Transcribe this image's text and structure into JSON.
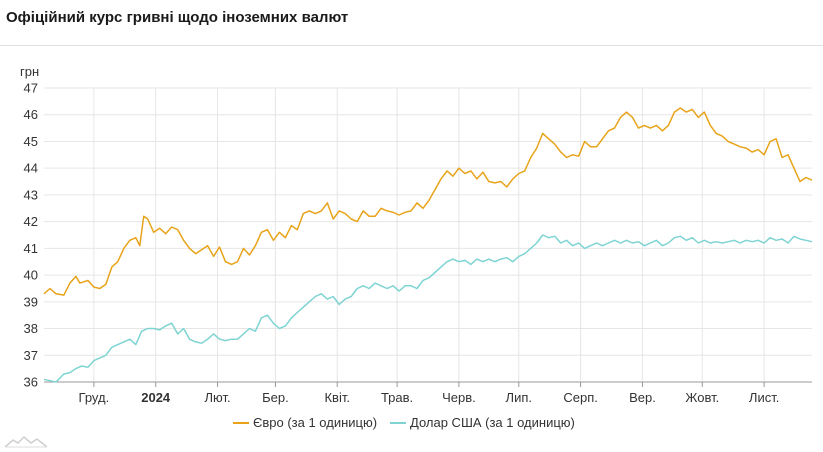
{
  "title": "Офіційний курс гривні щодо іноземних валют",
  "chart_data": {
    "type": "line",
    "ylabel": "грн",
    "ylim": [
      36,
      47
    ],
    "yticks": [
      36,
      37,
      38,
      39,
      40,
      41,
      42,
      43,
      44,
      45,
      46,
      47
    ],
    "xlim": [
      "2023-11-06",
      "2024-11-25"
    ],
    "xticks": [
      {
        "date": "2023-12-01",
        "label": "Груд.",
        "bold": false
      },
      {
        "date": "2024-01-01",
        "label": "2024",
        "bold": true
      },
      {
        "date": "2024-02-01",
        "label": "Лют.",
        "bold": false
      },
      {
        "date": "2024-03-01",
        "label": "Бер.",
        "bold": false
      },
      {
        "date": "2024-04-01",
        "label": "Квіт.",
        "bold": false
      },
      {
        "date": "2024-05-01",
        "label": "Трав.",
        "bold": false
      },
      {
        "date": "2024-06-01",
        "label": "Черв.",
        "bold": false
      },
      {
        "date": "2024-07-01",
        "label": "Лип.",
        "bold": false
      },
      {
        "date": "2024-08-01",
        "label": "Серп.",
        "bold": false
      },
      {
        "date": "2024-09-01",
        "label": "Вер.",
        "bold": false
      },
      {
        "date": "2024-10-01",
        "label": "Жовт.",
        "bold": false
      },
      {
        "date": "2024-11-01",
        "label": "Лист.",
        "bold": false
      }
    ],
    "grid": true,
    "legend_position": "bottom",
    "series": [
      {
        "name": "Євро (за 1 одиницю)",
        "color": "#e8a319",
        "points": [
          [
            "2023-11-06",
            39.3
          ],
          [
            "2023-11-09",
            39.5
          ],
          [
            "2023-11-12",
            39.3
          ],
          [
            "2023-11-16",
            39.25
          ],
          [
            "2023-11-19",
            39.7
          ],
          [
            "2023-11-22",
            39.95
          ],
          [
            "2023-11-24",
            39.7
          ],
          [
            "2023-11-28",
            39.8
          ],
          [
            "2023-12-01",
            39.55
          ],
          [
            "2023-12-04",
            39.5
          ],
          [
            "2023-12-07",
            39.65
          ],
          [
            "2023-12-10",
            40.3
          ],
          [
            "2023-12-13",
            40.5
          ],
          [
            "2023-12-16",
            41.0
          ],
          [
            "2023-12-19",
            41.3
          ],
          [
            "2023-12-22",
            41.4
          ],
          [
            "2023-12-24",
            41.1
          ],
          [
            "2023-12-26",
            42.2
          ],
          [
            "2023-12-28",
            42.1
          ],
          [
            "2023-12-31",
            41.6
          ],
          [
            "2024-01-03",
            41.75
          ],
          [
            "2024-01-06",
            41.55
          ],
          [
            "2024-01-09",
            41.8
          ],
          [
            "2024-01-12",
            41.7
          ],
          [
            "2024-01-15",
            41.3
          ],
          [
            "2024-01-18",
            41.0
          ],
          [
            "2024-01-21",
            40.8
          ],
          [
            "2024-01-24",
            40.95
          ],
          [
            "2024-01-27",
            41.1
          ],
          [
            "2024-01-30",
            40.7
          ],
          [
            "2024-02-02",
            41.05
          ],
          [
            "2024-02-05",
            40.5
          ],
          [
            "2024-02-08",
            40.4
          ],
          [
            "2024-02-11",
            40.5
          ],
          [
            "2024-02-14",
            41.0
          ],
          [
            "2024-02-17",
            40.75
          ],
          [
            "2024-02-20",
            41.1
          ],
          [
            "2024-02-23",
            41.6
          ],
          [
            "2024-02-26",
            41.7
          ],
          [
            "2024-02-29",
            41.3
          ],
          [
            "2024-03-03",
            41.6
          ],
          [
            "2024-03-06",
            41.4
          ],
          [
            "2024-03-09",
            41.85
          ],
          [
            "2024-03-12",
            41.7
          ],
          [
            "2024-03-15",
            42.3
          ],
          [
            "2024-03-18",
            42.4
          ],
          [
            "2024-03-21",
            42.3
          ],
          [
            "2024-03-24",
            42.4
          ],
          [
            "2024-03-27",
            42.7
          ],
          [
            "2024-03-30",
            42.1
          ],
          [
            "2024-04-02",
            42.4
          ],
          [
            "2024-04-05",
            42.3
          ],
          [
            "2024-04-08",
            42.1
          ],
          [
            "2024-04-11",
            42.0
          ],
          [
            "2024-04-14",
            42.4
          ],
          [
            "2024-04-17",
            42.2
          ],
          [
            "2024-04-20",
            42.2
          ],
          [
            "2024-04-23",
            42.5
          ],
          [
            "2024-04-26",
            42.4
          ],
          [
            "2024-04-29",
            42.35
          ],
          [
            "2024-05-02",
            42.25
          ],
          [
            "2024-05-05",
            42.35
          ],
          [
            "2024-05-08",
            42.4
          ],
          [
            "2024-05-11",
            42.7
          ],
          [
            "2024-05-14",
            42.5
          ],
          [
            "2024-05-17",
            42.8
          ],
          [
            "2024-05-20",
            43.2
          ],
          [
            "2024-05-23",
            43.6
          ],
          [
            "2024-05-26",
            43.9
          ],
          [
            "2024-05-29",
            43.7
          ],
          [
            "2024-06-01",
            44.0
          ],
          [
            "2024-06-04",
            43.8
          ],
          [
            "2024-06-07",
            43.9
          ],
          [
            "2024-06-10",
            43.6
          ],
          [
            "2024-06-13",
            43.85
          ],
          [
            "2024-06-16",
            43.5
          ],
          [
            "2024-06-19",
            43.45
          ],
          [
            "2024-06-22",
            43.5
          ],
          [
            "2024-06-25",
            43.3
          ],
          [
            "2024-06-28",
            43.6
          ],
          [
            "2024-07-01",
            43.8
          ],
          [
            "2024-07-04",
            43.9
          ],
          [
            "2024-07-07",
            44.4
          ],
          [
            "2024-07-10",
            44.75
          ],
          [
            "2024-07-13",
            45.3
          ],
          [
            "2024-07-16",
            45.1
          ],
          [
            "2024-07-19",
            44.9
          ],
          [
            "2024-07-22",
            44.6
          ],
          [
            "2024-07-25",
            44.4
          ],
          [
            "2024-07-28",
            44.5
          ],
          [
            "2024-07-31",
            44.45
          ],
          [
            "2024-08-03",
            45.0
          ],
          [
            "2024-08-06",
            44.8
          ],
          [
            "2024-08-09",
            44.8
          ],
          [
            "2024-08-12",
            45.1
          ],
          [
            "2024-08-15",
            45.4
          ],
          [
            "2024-08-18",
            45.5
          ],
          [
            "2024-08-21",
            45.9
          ],
          [
            "2024-08-24",
            46.1
          ],
          [
            "2024-08-27",
            45.9
          ],
          [
            "2024-08-30",
            45.5
          ],
          [
            "2024-09-02",
            45.6
          ],
          [
            "2024-09-05",
            45.5
          ],
          [
            "2024-09-08",
            45.6
          ],
          [
            "2024-09-11",
            45.4
          ],
          [
            "2024-09-14",
            45.6
          ],
          [
            "2024-09-17",
            46.1
          ],
          [
            "2024-09-20",
            46.25
          ],
          [
            "2024-09-23",
            46.1
          ],
          [
            "2024-09-26",
            46.2
          ],
          [
            "2024-09-29",
            45.9
          ],
          [
            "2024-10-02",
            46.1
          ],
          [
            "2024-10-05",
            45.6
          ],
          [
            "2024-10-08",
            45.3
          ],
          [
            "2024-10-11",
            45.2
          ],
          [
            "2024-10-14",
            45.0
          ],
          [
            "2024-10-17",
            44.9
          ],
          [
            "2024-10-20",
            44.8
          ],
          [
            "2024-10-23",
            44.75
          ],
          [
            "2024-10-26",
            44.6
          ],
          [
            "2024-10-29",
            44.7
          ],
          [
            "2024-11-01",
            44.5
          ],
          [
            "2024-11-04",
            45.0
          ],
          [
            "2024-11-07",
            45.1
          ],
          [
            "2024-11-10",
            44.4
          ],
          [
            "2024-11-13",
            44.5
          ],
          [
            "2024-11-16",
            44.0
          ],
          [
            "2024-11-19",
            43.5
          ],
          [
            "2024-11-22",
            43.65
          ],
          [
            "2024-11-25",
            43.55
          ]
        ]
      },
      {
        "name": "Долар США (за 1 одиницю)",
        "color": "#7ed3d3",
        "points": [
          [
            "2023-11-06",
            36.1
          ],
          [
            "2023-11-09",
            36.05
          ],
          [
            "2023-11-12",
            36.0
          ],
          [
            "2023-11-16",
            36.3
          ],
          [
            "2023-11-19",
            36.35
          ],
          [
            "2023-11-22",
            36.5
          ],
          [
            "2023-11-25",
            36.6
          ],
          [
            "2023-11-28",
            36.55
          ],
          [
            "2023-12-01",
            36.8
          ],
          [
            "2023-12-04",
            36.9
          ],
          [
            "2023-12-07",
            37.0
          ],
          [
            "2023-12-10",
            37.3
          ],
          [
            "2023-12-13",
            37.4
          ],
          [
            "2023-12-16",
            37.5
          ],
          [
            "2023-12-19",
            37.6
          ],
          [
            "2023-12-22",
            37.4
          ],
          [
            "2023-12-25",
            37.9
          ],
          [
            "2023-12-28",
            38.0
          ],
          [
            "2023-12-31",
            38.0
          ],
          [
            "2024-01-03",
            37.95
          ],
          [
            "2024-01-06",
            38.1
          ],
          [
            "2024-01-09",
            38.2
          ],
          [
            "2024-01-12",
            37.8
          ],
          [
            "2024-01-15",
            38.0
          ],
          [
            "2024-01-18",
            37.6
          ],
          [
            "2024-01-21",
            37.5
          ],
          [
            "2024-01-24",
            37.45
          ],
          [
            "2024-01-27",
            37.6
          ],
          [
            "2024-01-30",
            37.8
          ],
          [
            "2024-02-02",
            37.6
          ],
          [
            "2024-02-05",
            37.55
          ],
          [
            "2024-02-08",
            37.6
          ],
          [
            "2024-02-11",
            37.6
          ],
          [
            "2024-02-14",
            37.8
          ],
          [
            "2024-02-17",
            38.0
          ],
          [
            "2024-02-20",
            37.9
          ],
          [
            "2024-02-23",
            38.4
          ],
          [
            "2024-02-26",
            38.5
          ],
          [
            "2024-02-29",
            38.2
          ],
          [
            "2024-03-03",
            38.0
          ],
          [
            "2024-03-06",
            38.1
          ],
          [
            "2024-03-09",
            38.4
          ],
          [
            "2024-03-12",
            38.6
          ],
          [
            "2024-03-15",
            38.8
          ],
          [
            "2024-03-18",
            39.0
          ],
          [
            "2024-03-21",
            39.2
          ],
          [
            "2024-03-24",
            39.3
          ],
          [
            "2024-03-27",
            39.1
          ],
          [
            "2024-03-30",
            39.2
          ],
          [
            "2024-04-02",
            38.9
          ],
          [
            "2024-04-05",
            39.1
          ],
          [
            "2024-04-08",
            39.2
          ],
          [
            "2024-04-11",
            39.5
          ],
          [
            "2024-04-14",
            39.6
          ],
          [
            "2024-04-17",
            39.5
          ],
          [
            "2024-04-20",
            39.7
          ],
          [
            "2024-04-23",
            39.6
          ],
          [
            "2024-04-26",
            39.5
          ],
          [
            "2024-04-29",
            39.6
          ],
          [
            "2024-05-02",
            39.4
          ],
          [
            "2024-05-05",
            39.6
          ],
          [
            "2024-05-08",
            39.6
          ],
          [
            "2024-05-11",
            39.5
          ],
          [
            "2024-05-14",
            39.8
          ],
          [
            "2024-05-17",
            39.9
          ],
          [
            "2024-05-20",
            40.1
          ],
          [
            "2024-05-23",
            40.3
          ],
          [
            "2024-05-26",
            40.5
          ],
          [
            "2024-05-29",
            40.6
          ],
          [
            "2024-06-01",
            40.5
          ],
          [
            "2024-06-04",
            40.55
          ],
          [
            "2024-06-07",
            40.4
          ],
          [
            "2024-06-10",
            40.6
          ],
          [
            "2024-06-13",
            40.5
          ],
          [
            "2024-06-16",
            40.6
          ],
          [
            "2024-06-19",
            40.5
          ],
          [
            "2024-06-22",
            40.6
          ],
          [
            "2024-06-25",
            40.65
          ],
          [
            "2024-06-28",
            40.5
          ],
          [
            "2024-07-01",
            40.7
          ],
          [
            "2024-07-04",
            40.8
          ],
          [
            "2024-07-07",
            41.0
          ],
          [
            "2024-07-10",
            41.2
          ],
          [
            "2024-07-13",
            41.5
          ],
          [
            "2024-07-16",
            41.4
          ],
          [
            "2024-07-19",
            41.45
          ],
          [
            "2024-07-22",
            41.2
          ],
          [
            "2024-07-25",
            41.3
          ],
          [
            "2024-07-28",
            41.1
          ],
          [
            "2024-07-31",
            41.2
          ],
          [
            "2024-08-03",
            41.0
          ],
          [
            "2024-08-06",
            41.1
          ],
          [
            "2024-08-09",
            41.2
          ],
          [
            "2024-08-12",
            41.1
          ],
          [
            "2024-08-15",
            41.2
          ],
          [
            "2024-08-18",
            41.3
          ],
          [
            "2024-08-21",
            41.2
          ],
          [
            "2024-08-24",
            41.3
          ],
          [
            "2024-08-27",
            41.2
          ],
          [
            "2024-08-30",
            41.25
          ],
          [
            "2024-09-02",
            41.1
          ],
          [
            "2024-09-05",
            41.2
          ],
          [
            "2024-09-08",
            41.3
          ],
          [
            "2024-09-11",
            41.1
          ],
          [
            "2024-09-14",
            41.2
          ],
          [
            "2024-09-17",
            41.4
          ],
          [
            "2024-09-20",
            41.45
          ],
          [
            "2024-09-23",
            41.3
          ],
          [
            "2024-09-26",
            41.4
          ],
          [
            "2024-09-29",
            41.2
          ],
          [
            "2024-10-02",
            41.3
          ],
          [
            "2024-10-05",
            41.2
          ],
          [
            "2024-10-08",
            41.25
          ],
          [
            "2024-10-11",
            41.2
          ],
          [
            "2024-10-14",
            41.25
          ],
          [
            "2024-10-17",
            41.3
          ],
          [
            "2024-10-20",
            41.2
          ],
          [
            "2024-10-23",
            41.3
          ],
          [
            "2024-10-26",
            41.25
          ],
          [
            "2024-10-29",
            41.3
          ],
          [
            "2024-11-01",
            41.2
          ],
          [
            "2024-11-04",
            41.4
          ],
          [
            "2024-11-07",
            41.3
          ],
          [
            "2024-11-10",
            41.35
          ],
          [
            "2024-11-13",
            41.2
          ],
          [
            "2024-11-16",
            41.45
          ],
          [
            "2024-11-19",
            41.35
          ],
          [
            "2024-11-22",
            41.3
          ],
          [
            "2024-11-25",
            41.25
          ]
        ]
      }
    ]
  }
}
